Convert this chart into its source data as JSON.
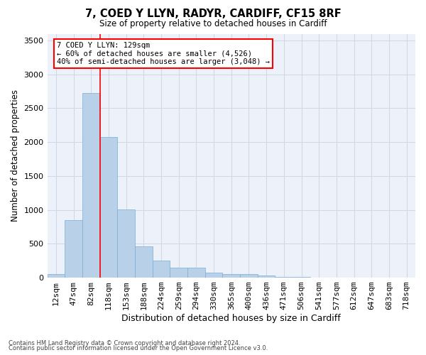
{
  "title1": "7, COED Y LLYN, RADYR, CARDIFF, CF15 8RF",
  "title2": "Size of property relative to detached houses in Cardiff",
  "xlabel": "Distribution of detached houses by size in Cardiff",
  "ylabel": "Number of detached properties",
  "categories": [
    "12sqm",
    "47sqm",
    "82sqm",
    "118sqm",
    "153sqm",
    "188sqm",
    "224sqm",
    "259sqm",
    "294sqm",
    "330sqm",
    "365sqm",
    "400sqm",
    "436sqm",
    "471sqm",
    "506sqm",
    "541sqm",
    "577sqm",
    "612sqm",
    "647sqm",
    "683sqm",
    "718sqm"
  ],
  "values": [
    55,
    850,
    2730,
    2080,
    1010,
    460,
    250,
    150,
    150,
    70,
    50,
    50,
    30,
    15,
    10,
    5,
    5,
    5,
    3,
    2,
    2
  ],
  "bar_color": "#b8d0e8",
  "bar_edge_color": "#7aafd4",
  "grid_color": "#d0d8e8",
  "bg_color": "#edf2fa",
  "vline_color": "red",
  "annotation_text": "7 COED Y LLYN: 129sqm\n← 60% of detached houses are smaller (4,526)\n40% of semi-detached houses are larger (3,048) →",
  "ylim": [
    0,
    3600
  ],
  "yticks": [
    0,
    500,
    1000,
    1500,
    2000,
    2500,
    3000,
    3500
  ],
  "footer1": "Contains HM Land Registry data © Crown copyright and database right 2024.",
  "footer2": "Contains public sector information licensed under the Open Government Licence v3.0."
}
